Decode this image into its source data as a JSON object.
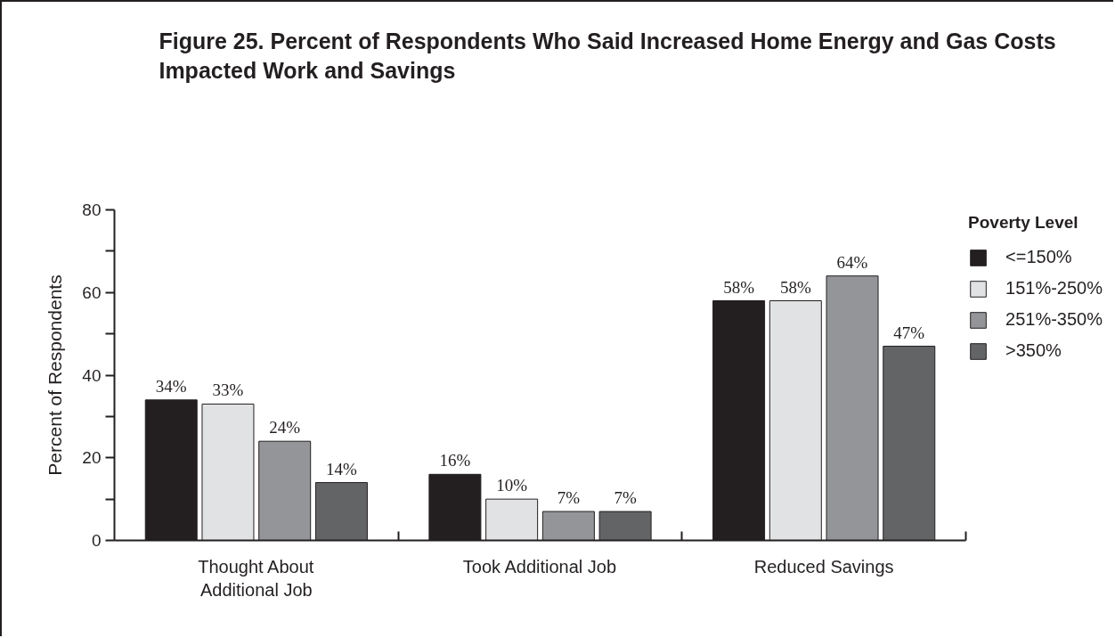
{
  "chart_data": {
    "type": "bar",
    "title": "Figure 25.  Percent of Respondents Who Said Increased Home Energy and Gas Costs\nImpacted Work and Savings",
    "ylabel": "Percent of Respondents",
    "legend_title": "Poverty Level",
    "categories": [
      "Thought About\nAdditional Job",
      "Took Additional Job",
      "Reduced Savings"
    ],
    "series": [
      {
        "name": "<=150%",
        "color": "#231f20",
        "values": [
          34,
          16,
          58
        ],
        "value_labels": [
          "34%",
          "16%",
          "58%"
        ]
      },
      {
        "name": "151%-250%",
        "color": "#e1e2e4",
        "values": [
          33,
          10,
          58
        ],
        "value_labels": [
          "33%",
          "10%",
          "58%"
        ]
      },
      {
        "name": "251%-350%",
        "color": "#939598",
        "values": [
          24,
          7,
          64
        ],
        "value_labels": [
          "24%",
          "7%",
          "64%"
        ]
      },
      {
        "name": ">350%",
        "color": "#636466",
        "values": [
          14,
          7,
          47
        ],
        "value_labels": [
          "14%",
          "7%",
          "47%"
        ]
      }
    ],
    "ylim": [
      0,
      80
    ],
    "yticks": [
      0,
      {
        "value": 10,
        "label": null
      },
      20,
      {
        "value": 30,
        "label": null
      },
      40,
      {
        "value": 50,
        "label": null
      },
      60,
      {
        "value": 70,
        "label": null
      },
      80
    ],
    "legend": "top right"
  }
}
